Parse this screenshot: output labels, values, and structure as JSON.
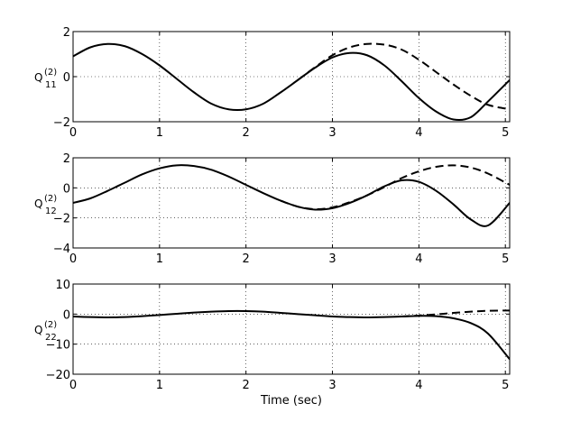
{
  "chart_data": [
    {
      "type": "line",
      "ylabel": {
        "base": "Q",
        "sup": "(2)",
        "sub": "11"
      },
      "xlim": [
        0,
        5.05
      ],
      "ylim": [
        -2,
        2
      ],
      "xticks": [
        0,
        1,
        2,
        3,
        4,
        5
      ],
      "yticks": [
        -2,
        0,
        2
      ],
      "xtick_labels": [
        "0",
        "1",
        "2",
        "3",
        "4",
        "5"
      ],
      "ytick_labels": [
        "−2",
        "0",
        "2"
      ],
      "grid": true,
      "series": [
        {
          "style": "solid",
          "color": "#000000",
          "x": [
            0,
            0.2,
            0.4,
            0.6,
            0.8,
            1.0,
            1.2,
            1.4,
            1.6,
            1.8,
            2.0,
            2.2,
            2.4,
            2.6,
            2.8,
            3.0,
            3.2,
            3.4,
            3.6,
            3.8,
            4.0,
            4.2,
            4.4,
            4.6,
            4.8,
            5.05
          ],
          "y": [
            0.9,
            1.3,
            1.45,
            1.35,
            1.0,
            0.5,
            -0.1,
            -0.7,
            -1.2,
            -1.45,
            -1.45,
            -1.2,
            -0.7,
            -0.15,
            0.4,
            0.85,
            1.05,
            0.95,
            0.5,
            -0.2,
            -0.95,
            -1.55,
            -1.9,
            -1.8,
            -1.1,
            -0.15
          ]
        },
        {
          "style": "dashed",
          "color": "#000000",
          "x": [
            2.6,
            2.8,
            3.0,
            3.2,
            3.4,
            3.6,
            3.8,
            4.0,
            4.2,
            4.4,
            4.6,
            4.8,
            5.05
          ],
          "y": [
            -0.15,
            0.42,
            0.95,
            1.3,
            1.45,
            1.42,
            1.2,
            0.75,
            0.2,
            -0.35,
            -0.85,
            -1.25,
            -1.45
          ]
        }
      ]
    },
    {
      "type": "line",
      "ylabel": {
        "base": "Q",
        "sup": "(2)",
        "sub": "12"
      },
      "xlim": [
        0,
        5.05
      ],
      "ylim": [
        -4,
        2
      ],
      "xticks": [
        0,
        1,
        2,
        3,
        4,
        5
      ],
      "yticks": [
        -4,
        -2,
        0,
        2
      ],
      "xtick_labels": [
        "0",
        "1",
        "2",
        "3",
        "4",
        "5"
      ],
      "ytick_labels": [
        "−4",
        "−2",
        "0",
        "2"
      ],
      "grid": true,
      "series": [
        {
          "style": "solid",
          "color": "#000000",
          "x": [
            0,
            0.2,
            0.4,
            0.6,
            0.8,
            1.0,
            1.2,
            1.4,
            1.6,
            1.8,
            2.0,
            2.2,
            2.4,
            2.6,
            2.8,
            3.0,
            3.2,
            3.4,
            3.6,
            3.8,
            4.0,
            4.2,
            4.4,
            4.6,
            4.8,
            5.05
          ],
          "y": [
            -1.0,
            -0.7,
            -0.2,
            0.35,
            0.9,
            1.3,
            1.5,
            1.45,
            1.2,
            0.75,
            0.2,
            -0.35,
            -0.85,
            -1.25,
            -1.45,
            -1.35,
            -1.0,
            -0.5,
            0.1,
            0.5,
            0.4,
            -0.2,
            -1.1,
            -2.1,
            -2.5,
            -1.0
          ]
        },
        {
          "style": "dashed",
          "color": "#000000",
          "x": [
            2.4,
            2.6,
            2.8,
            3.0,
            3.2,
            3.4,
            3.6,
            3.8,
            4.0,
            4.2,
            4.4,
            4.6,
            4.8,
            5.05
          ],
          "y": [
            -0.85,
            -1.25,
            -1.42,
            -1.3,
            -0.95,
            -0.5,
            0.05,
            0.65,
            1.1,
            1.4,
            1.5,
            1.35,
            0.95,
            0.2
          ]
        }
      ]
    },
    {
      "type": "line",
      "ylabel": {
        "base": "Q",
        "sup": "(2)",
        "sub": "22"
      },
      "xlabel": "Time (sec)",
      "xlim": [
        0,
        5.05
      ],
      "ylim": [
        -20,
        10
      ],
      "xticks": [
        0,
        1,
        2,
        3,
        4,
        5
      ],
      "yticks": [
        -20,
        -10,
        0,
        10
      ],
      "xtick_labels": [
        "0",
        "1",
        "2",
        "3",
        "4",
        "5"
      ],
      "ytick_labels": [
        "−20",
        "−10",
        "0",
        "10"
      ],
      "grid": true,
      "series": [
        {
          "style": "solid",
          "color": "#000000",
          "x": [
            0,
            0.2,
            0.4,
            0.6,
            0.8,
            1.0,
            1.2,
            1.4,
            1.6,
            1.8,
            2.0,
            2.2,
            2.4,
            2.6,
            2.8,
            3.0,
            3.2,
            3.4,
            3.6,
            3.8,
            4.0,
            4.2,
            4.4,
            4.6,
            4.8,
            5.05
          ],
          "y": [
            -0.8,
            -1.0,
            -1.1,
            -1.0,
            -0.7,
            -0.3,
            0.1,
            0.5,
            0.8,
            1.0,
            1.0,
            0.8,
            0.4,
            0.0,
            -0.4,
            -0.8,
            -1.0,
            -1.1,
            -1.0,
            -0.8,
            -0.6,
            -0.7,
            -1.4,
            -3.0,
            -6.5,
            -15.0
          ]
        },
        {
          "style": "dashed",
          "color": "#000000",
          "x": [
            3.8,
            4.0,
            4.2,
            4.4,
            4.6,
            4.8,
            5.05
          ],
          "y": [
            -0.8,
            -0.5,
            -0.1,
            0.4,
            0.8,
            1.1,
            1.2
          ]
        }
      ]
    }
  ]
}
